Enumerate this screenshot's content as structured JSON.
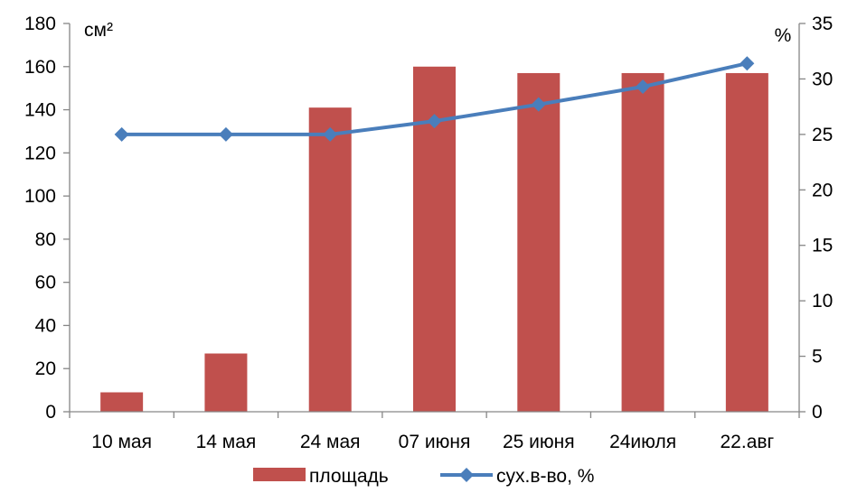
{
  "chart_data": {
    "type": "bar",
    "categories": [
      "10 мая",
      "14 мая",
      "24 мая",
      "07 июня",
      "25 июня",
      "24июля",
      "22.авг"
    ],
    "series": [
      {
        "name": "площадь",
        "type": "bar",
        "axis": "left",
        "color": "#C0504D",
        "values": [
          9,
          27,
          141,
          160,
          157,
          157,
          157
        ]
      },
      {
        "name": "сух.в-во, %",
        "type": "line",
        "axis": "right",
        "color": "#4A7EBB",
        "marker": "diamond",
        "values": [
          25,
          25,
          25,
          26.2,
          27.7,
          29.3,
          31.4
        ]
      }
    ],
    "y_left": {
      "unit_label": "см²",
      "ylim": [
        0,
        180
      ],
      "ticks": [
        "0",
        "20",
        "40",
        "60",
        "80",
        "100",
        "120",
        "140",
        "160",
        "180"
      ]
    },
    "y_right": {
      "unit_label": "%",
      "ylim": [
        0,
        35
      ],
      "ticks": [
        "0",
        "5",
        "10",
        "15",
        "20",
        "25",
        "30",
        "35"
      ]
    },
    "grid": false,
    "legend_position": "bottom"
  }
}
